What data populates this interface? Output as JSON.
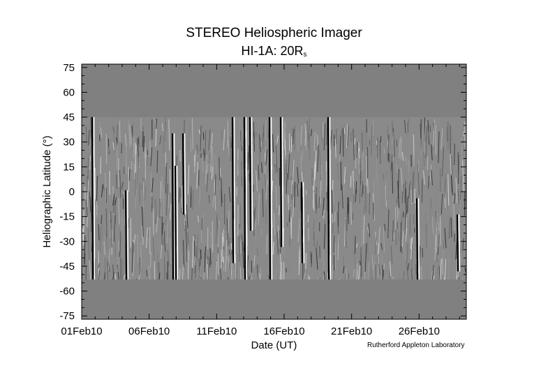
{
  "header": {
    "title": "STEREO Heliospheric Imager",
    "subtitle_main": "HI-1A: 20R",
    "subtitle_sub": "s"
  },
  "footer": {
    "credit": "Rutherford Appleton Laboratory"
  },
  "chart_data": {
    "type": "heatmap",
    "title": "STEREO Heliospheric Imager",
    "subtitle": "HI-1A: 20Rs",
    "xlabel": "Date (UT)",
    "ylabel": "Heliographic Latitude (°)",
    "x_tick_labels": [
      "01Feb10",
      "06Feb10",
      "11Feb10",
      "16Feb10",
      "21Feb10",
      "26Feb10"
    ],
    "x_tick_days": [
      0,
      5,
      10,
      15,
      20,
      25
    ],
    "xlim_days": [
      0,
      28.5
    ],
    "y_ticks": [
      75,
      60,
      45,
      30,
      15,
      0,
      -15,
      -30,
      -45,
      -60,
      -75
    ],
    "ylim": [
      -77,
      77
    ],
    "data_coverage_lat": [
      -53,
      45
    ],
    "colormap": "grayscale running-difference",
    "no_data_color": "#808080",
    "grid": false
  }
}
